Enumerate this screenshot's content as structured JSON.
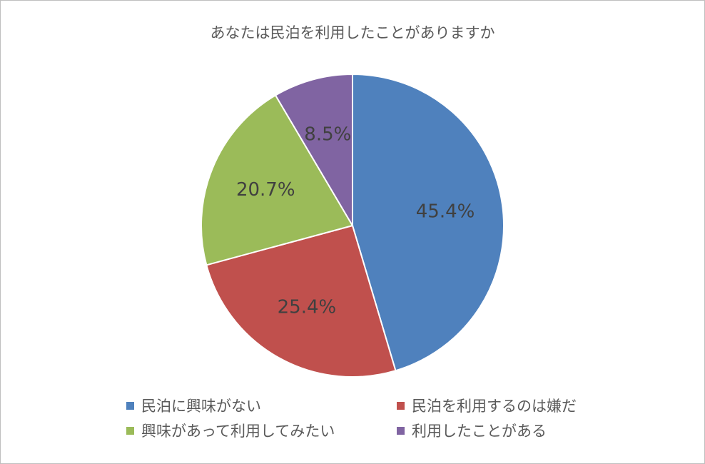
{
  "chart_data": {
    "type": "pie",
    "title": "あなたは民泊を利用したことがありますか",
    "slices": [
      {
        "name": "民泊に興味がない",
        "value": 45.4,
        "label": "45.4%",
        "color": "#4f81bd"
      },
      {
        "name": "民泊を利用するのは嫌だ",
        "value": 25.4,
        "label": "25.4%",
        "color": "#c0504d"
      },
      {
        "name": "興味があって利用してみたい",
        "value": 20.7,
        "label": "20.7%",
        "color": "#9bbb59"
      },
      {
        "name": "利用したことがある",
        "value": 8.5,
        "label": "8.5%",
        "color": "#8064a2"
      }
    ],
    "start_angle": "12 o'clock",
    "direction": "clockwise",
    "legend_position": "bottom"
  }
}
